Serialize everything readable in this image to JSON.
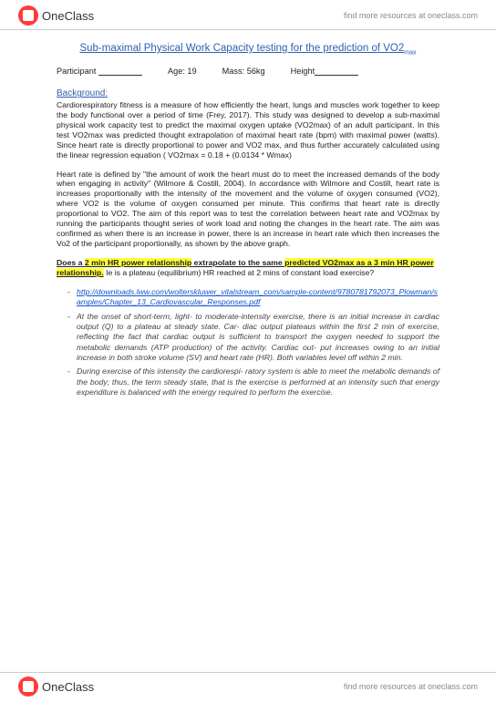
{
  "header": {
    "brand": "OneClass",
    "tagline": "find more resources at oneclass.com"
  },
  "title": {
    "main": "Sub-maximal Physical Work Capacity testing for the prediction of VO2",
    "sub": "max"
  },
  "participant": {
    "label_participant": "Participant",
    "label_age": "Age: 19",
    "label_mass": "Mass: 56kg",
    "label_height": "Height"
  },
  "background": {
    "heading": "Background:",
    "p1": "Cardiorespiratory fitness is a measure of how efficiently the heart, lungs and muscles work together to keep the body functional over a period of time (Frey, 2017). This study was designed to develop a sub-maximal physical work capacity test to predict the maximal oxygen uptake (VO2max) of an adult participant. In this test VO2max was predicted thought extrapolation of maximal heart rate (bpm) with maximal power (watts). Since heart rate is directly proportional to power and VO2 max, and thus further accurately calculated using the linear regression equation ( VO2max = 0.18 + (0.0134 * Wmax)",
    "p2": "Heart rate is defined by \"the amount of work the heart must do to meet the increased demands of the body when engaging in activity\" (Wilmore & Costill, 2004). In accordance with Wilmore and Costill, heart rate is increases proportionally with the intensity of the movement and the volume of oxygen consumed (VO2), where VO2 is the volume of oxygen consumed per minute. This confirms that heart rate is directly proportional to VO2. The aim of this report was to test the correlation between heart rate and VO2max by running the participants thought series of work load and noting the changes in the heart rate. The aim was confirmed as when there is an increase in power, there is an increase in heart rate which then increases the Vo2 of the participant proportionally, as shown by the above graph."
  },
  "question": {
    "pre": "Does a ",
    "hl1": "2 min HR power relationship",
    "mid": " extrapolate to the same ",
    "hl2": "predicted VO2max as a 3 min HR power relationship.",
    "post": " Ie is a plateau (equilibrium) HR reached at 2 mins of constant load exercise?"
  },
  "link": "http://downloads.lww.com/wolterskluwer_vitalstream_com/sample-content/9780781792073_Plowman/samples/Chapter_13_Cardiovascular_Responses.pdf",
  "bullets": {
    "b1": "At the onset of short-term, light- to moderate-intensity exercise, there is an initial increase in cardiac output (Q) to a plateau at steady state. Car- diac output plateaus within the first 2 min of exercise, reflecting the fact that cardiac output is sufficient to transport the oxygen needed to support the metabolic demands (ATP production) of the activity. Cardiac out- put increases owing to an initial increase in both stroke volume (SV) and heart rate (HR). Both variables level off within 2 min.",
    "b2": "During exercise of this intensity the cardiorespi- ratory system is able to meet the metabolic demands of the body; thus, the term steady state, that is the exercise is performed at an intensity such that energy expenditure is balanced with the energy required to perform the exercise."
  }
}
